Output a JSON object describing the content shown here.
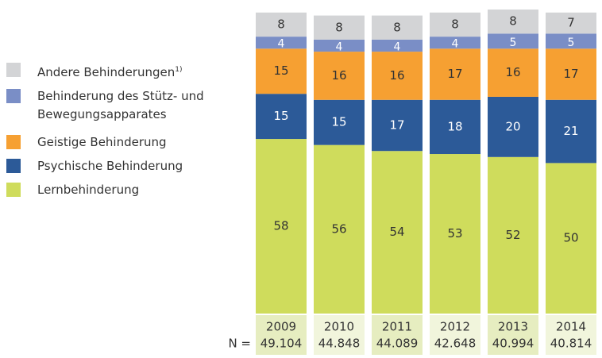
{
  "chart_data": {
    "type": "stacked-bar",
    "categories": [
      "2009",
      "2010",
      "2011",
      "2012",
      "2013",
      "2014"
    ],
    "n_label": "N =",
    "n_values": [
      "49.104",
      "44.848",
      "44.089",
      "42.648",
      "40.994",
      "40.814"
    ],
    "series": [
      {
        "name": "Lernbehinderung",
        "color": "#cfdc5c",
        "values": [
          58,
          56,
          54,
          53,
          52,
          50
        ]
      },
      {
        "name": "Psychische Behinderung",
        "color": "#2c5a98",
        "values": [
          15,
          15,
          17,
          18,
          20,
          21
        ]
      },
      {
        "name": "Geistige Behinderung",
        "color": "#f6a032",
        "values": [
          15,
          16,
          16,
          17,
          16,
          17
        ]
      },
      {
        "name": "Behinderung des Stütz- und Bewegungsapparates",
        "color": "#7a8ec6",
        "values": [
          4,
          4,
          4,
          4,
          5,
          5
        ]
      },
      {
        "name": "Andere Behinderungen",
        "name_note": "1)",
        "color": "#d3d4d6",
        "values": [
          8,
          8,
          8,
          8,
          8,
          7
        ]
      }
    ]
  }
}
